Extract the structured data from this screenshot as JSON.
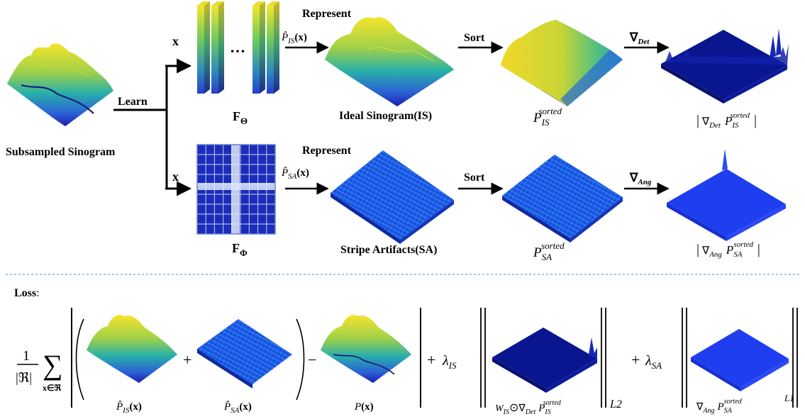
{
  "input": {
    "caption": "Subsampled Sinogram",
    "learn_label": "Learn"
  },
  "top_branch": {
    "input_symbol": "x",
    "network_dots": "…",
    "network_base": "F",
    "network_sub": "Θ",
    "represent_label": "Represent",
    "pred_base": "P̂",
    "pred_sub": "IS",
    "pred_arg": "(x)",
    "output_caption": "Ideal Sinogram(IS)",
    "sort_label": "Sort",
    "sorted_base": "P",
    "sorted_sub": "IS",
    "sorted_sup": "sorted",
    "grad_base": "∇",
    "grad_sub": "Det",
    "grad_caption_base": "∇",
    "grad_caption_sub": "Det",
    "grad_caption_P": "P",
    "grad_caption_P_sub": "IS",
    "grad_caption_P_sup": "sorted"
  },
  "bottom_branch": {
    "input_symbol": "x",
    "network_base": "F",
    "network_sub": "Φ",
    "represent_label": "Represent",
    "pred_base": "P̂",
    "pred_sub": "SA",
    "pred_arg": "(x)",
    "output_caption": "Stripe Artifacts(SA)",
    "sort_label": "Sort",
    "sorted_base": "P",
    "sorted_sub": "SA",
    "sorted_sup": "sorted",
    "grad_base": "∇",
    "grad_sub": "Ang",
    "grad_caption_base": "∇",
    "grad_caption_sub": "Ang",
    "grad_caption_P": "P",
    "grad_caption_P_sub": "SA",
    "grad_caption_P_sup": "sorted"
  },
  "loss": {
    "title": "Loss",
    "colon": ":",
    "frac_num": "1",
    "frac_den": "|ℜ|",
    "sum_symbol": "∑",
    "sum_sub": "x∈ℜ",
    "plus": "+",
    "minus": "−",
    "term1_caption_base": "P̂",
    "term1_caption_sub": "IS",
    "term1_caption_arg": "(x)",
    "term2_caption_base": "P̂",
    "term2_caption_sub": "SA",
    "term2_caption_arg": "(x)",
    "term3_caption_base": "P",
    "term3_caption_arg": "(x)",
    "lambda_is_base": "λ",
    "lambda_is_sub": "IS",
    "lambda_sa_base": "λ",
    "lambda_sa_sub": "SA",
    "norm1_caption_W": "W",
    "norm1_caption_W_sub": "IS",
    "norm1_caption_odot": "⊙",
    "norm1_caption_grad": "∇",
    "norm1_caption_grad_sub": "Det",
    "norm1_caption_P": "P",
    "norm1_caption_P_sub": "IS",
    "norm1_caption_P_sup": "sorted",
    "norm1_label": "L2",
    "norm2_caption_grad": "∇",
    "norm2_caption_grad_sub": "Ang",
    "norm2_caption_P": "P",
    "norm2_caption_P_sub": "SA",
    "norm2_caption_P_sup": "sorted",
    "norm2_label": "L1"
  },
  "colors": {
    "yellow": "#f5e52a",
    "green": "#3fbf7a",
    "teal": "#22a6b3",
    "blue": "#2347d6",
    "navy": "#0a1a8c",
    "divider": "#7a9cc8"
  }
}
